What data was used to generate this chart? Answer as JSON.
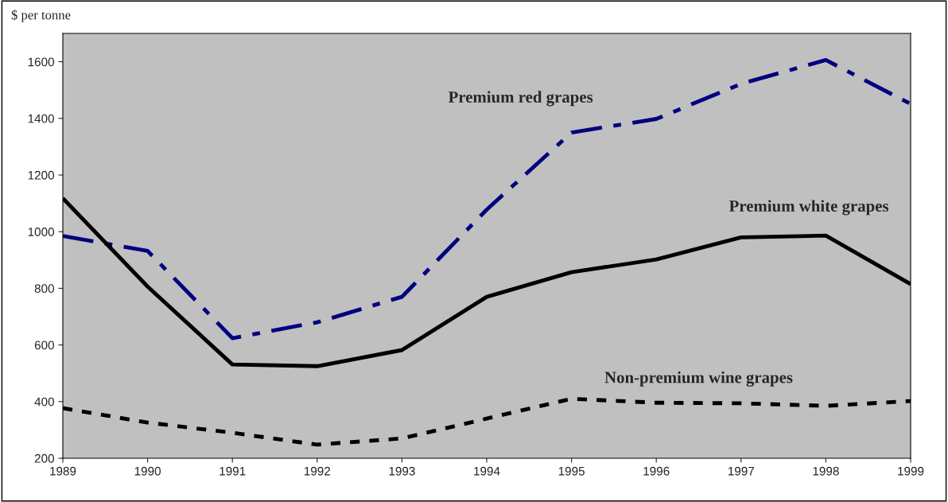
{
  "chart_data": {
    "type": "line",
    "ylabel": "$ per tonne",
    "x": [
      1989,
      1990,
      1991,
      1992,
      1993,
      1994,
      1995,
      1996,
      1997,
      1998,
      1999
    ],
    "xlim": [
      1989,
      1999
    ],
    "ylim": [
      200,
      1700
    ],
    "xticks": [
      1989,
      1990,
      1991,
      1992,
      1993,
      1994,
      1995,
      1996,
      1997,
      1998,
      1999
    ],
    "yticks": [
      200,
      400,
      600,
      800,
      1000,
      1200,
      1400,
      1600
    ],
    "grid": false,
    "legend": false,
    "marker": "none",
    "series": [
      {
        "name": "Premium red grapes",
        "color": "#000080",
        "line_style": "dashed",
        "values": [
          985,
          932,
          624,
          680,
          770,
          1078,
          1350,
          1398,
          1522,
          1606,
          1451
        ]
      },
      {
        "name": "Premium white grapes",
        "color": "#000000",
        "line_style": "solid",
        "values": [
          1118,
          806,
          531,
          525,
          582,
          770,
          857,
          902,
          980,
          986,
          815
        ]
      },
      {
        "name": "Non-premium wine grapes",
        "color": "#000000",
        "line_style": "dotted",
        "values": [
          377,
          326,
          290,
          248,
          270,
          340,
          410,
          396,
          394,
          385,
          402
        ]
      }
    ]
  }
}
